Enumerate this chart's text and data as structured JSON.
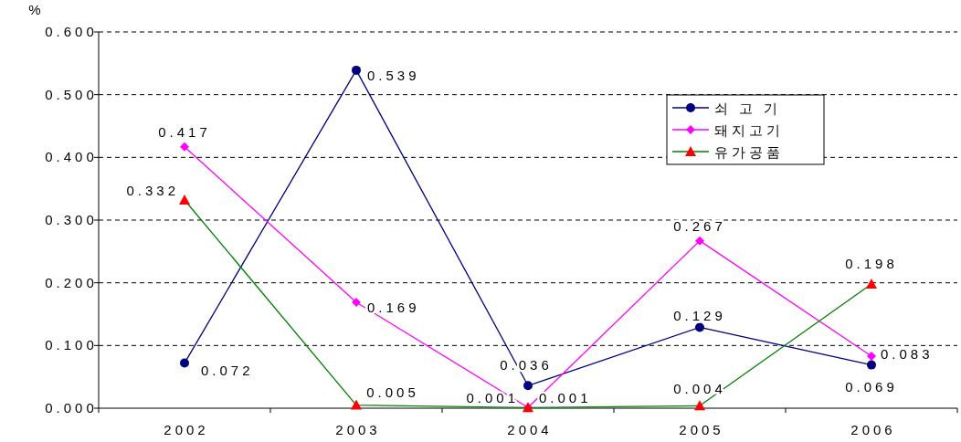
{
  "chart_data": {
    "type": "line",
    "ylabel": "%",
    "categories": [
      "2002",
      "2003",
      "2004",
      "2005",
      "2006"
    ],
    "series": [
      {
        "name": "쇠 고 기",
        "color": "#000080",
        "marker": "circle",
        "values": [
          0.072,
          0.539,
          0.036,
          0.129,
          0.069
        ]
      },
      {
        "name": "돼지고기",
        "color": "#ff00ff",
        "marker": "diamond",
        "values": [
          0.417,
          0.169,
          0.001,
          0.267,
          0.083
        ]
      },
      {
        "name": "유가공품",
        "color": "#008000",
        "colors": [
          "#ff0000",
          "#ff0000",
          "#ff0000",
          "#ff0000",
          "#ff0000"
        ],
        "marker": "triangle",
        "values": [
          0.332,
          0.005,
          0.001,
          0.004,
          0.198
        ]
      }
    ],
    "ylim": [
      0,
      0.6
    ],
    "yticks": [
      {
        "value": 0,
        "label": "0.000"
      },
      {
        "value": 0.1,
        "label": "0.100"
      },
      {
        "value": 0.2,
        "label": "0.200"
      },
      {
        "value": 0.3,
        "label": "0.300"
      },
      {
        "value": 0.4,
        "label": "0.400"
      },
      {
        "value": 0.5,
        "label": "0.500"
      },
      {
        "value": 0.6,
        "label": "0.600"
      }
    ],
    "grid": "y",
    "legend": "top right",
    "data_labels": true
  }
}
